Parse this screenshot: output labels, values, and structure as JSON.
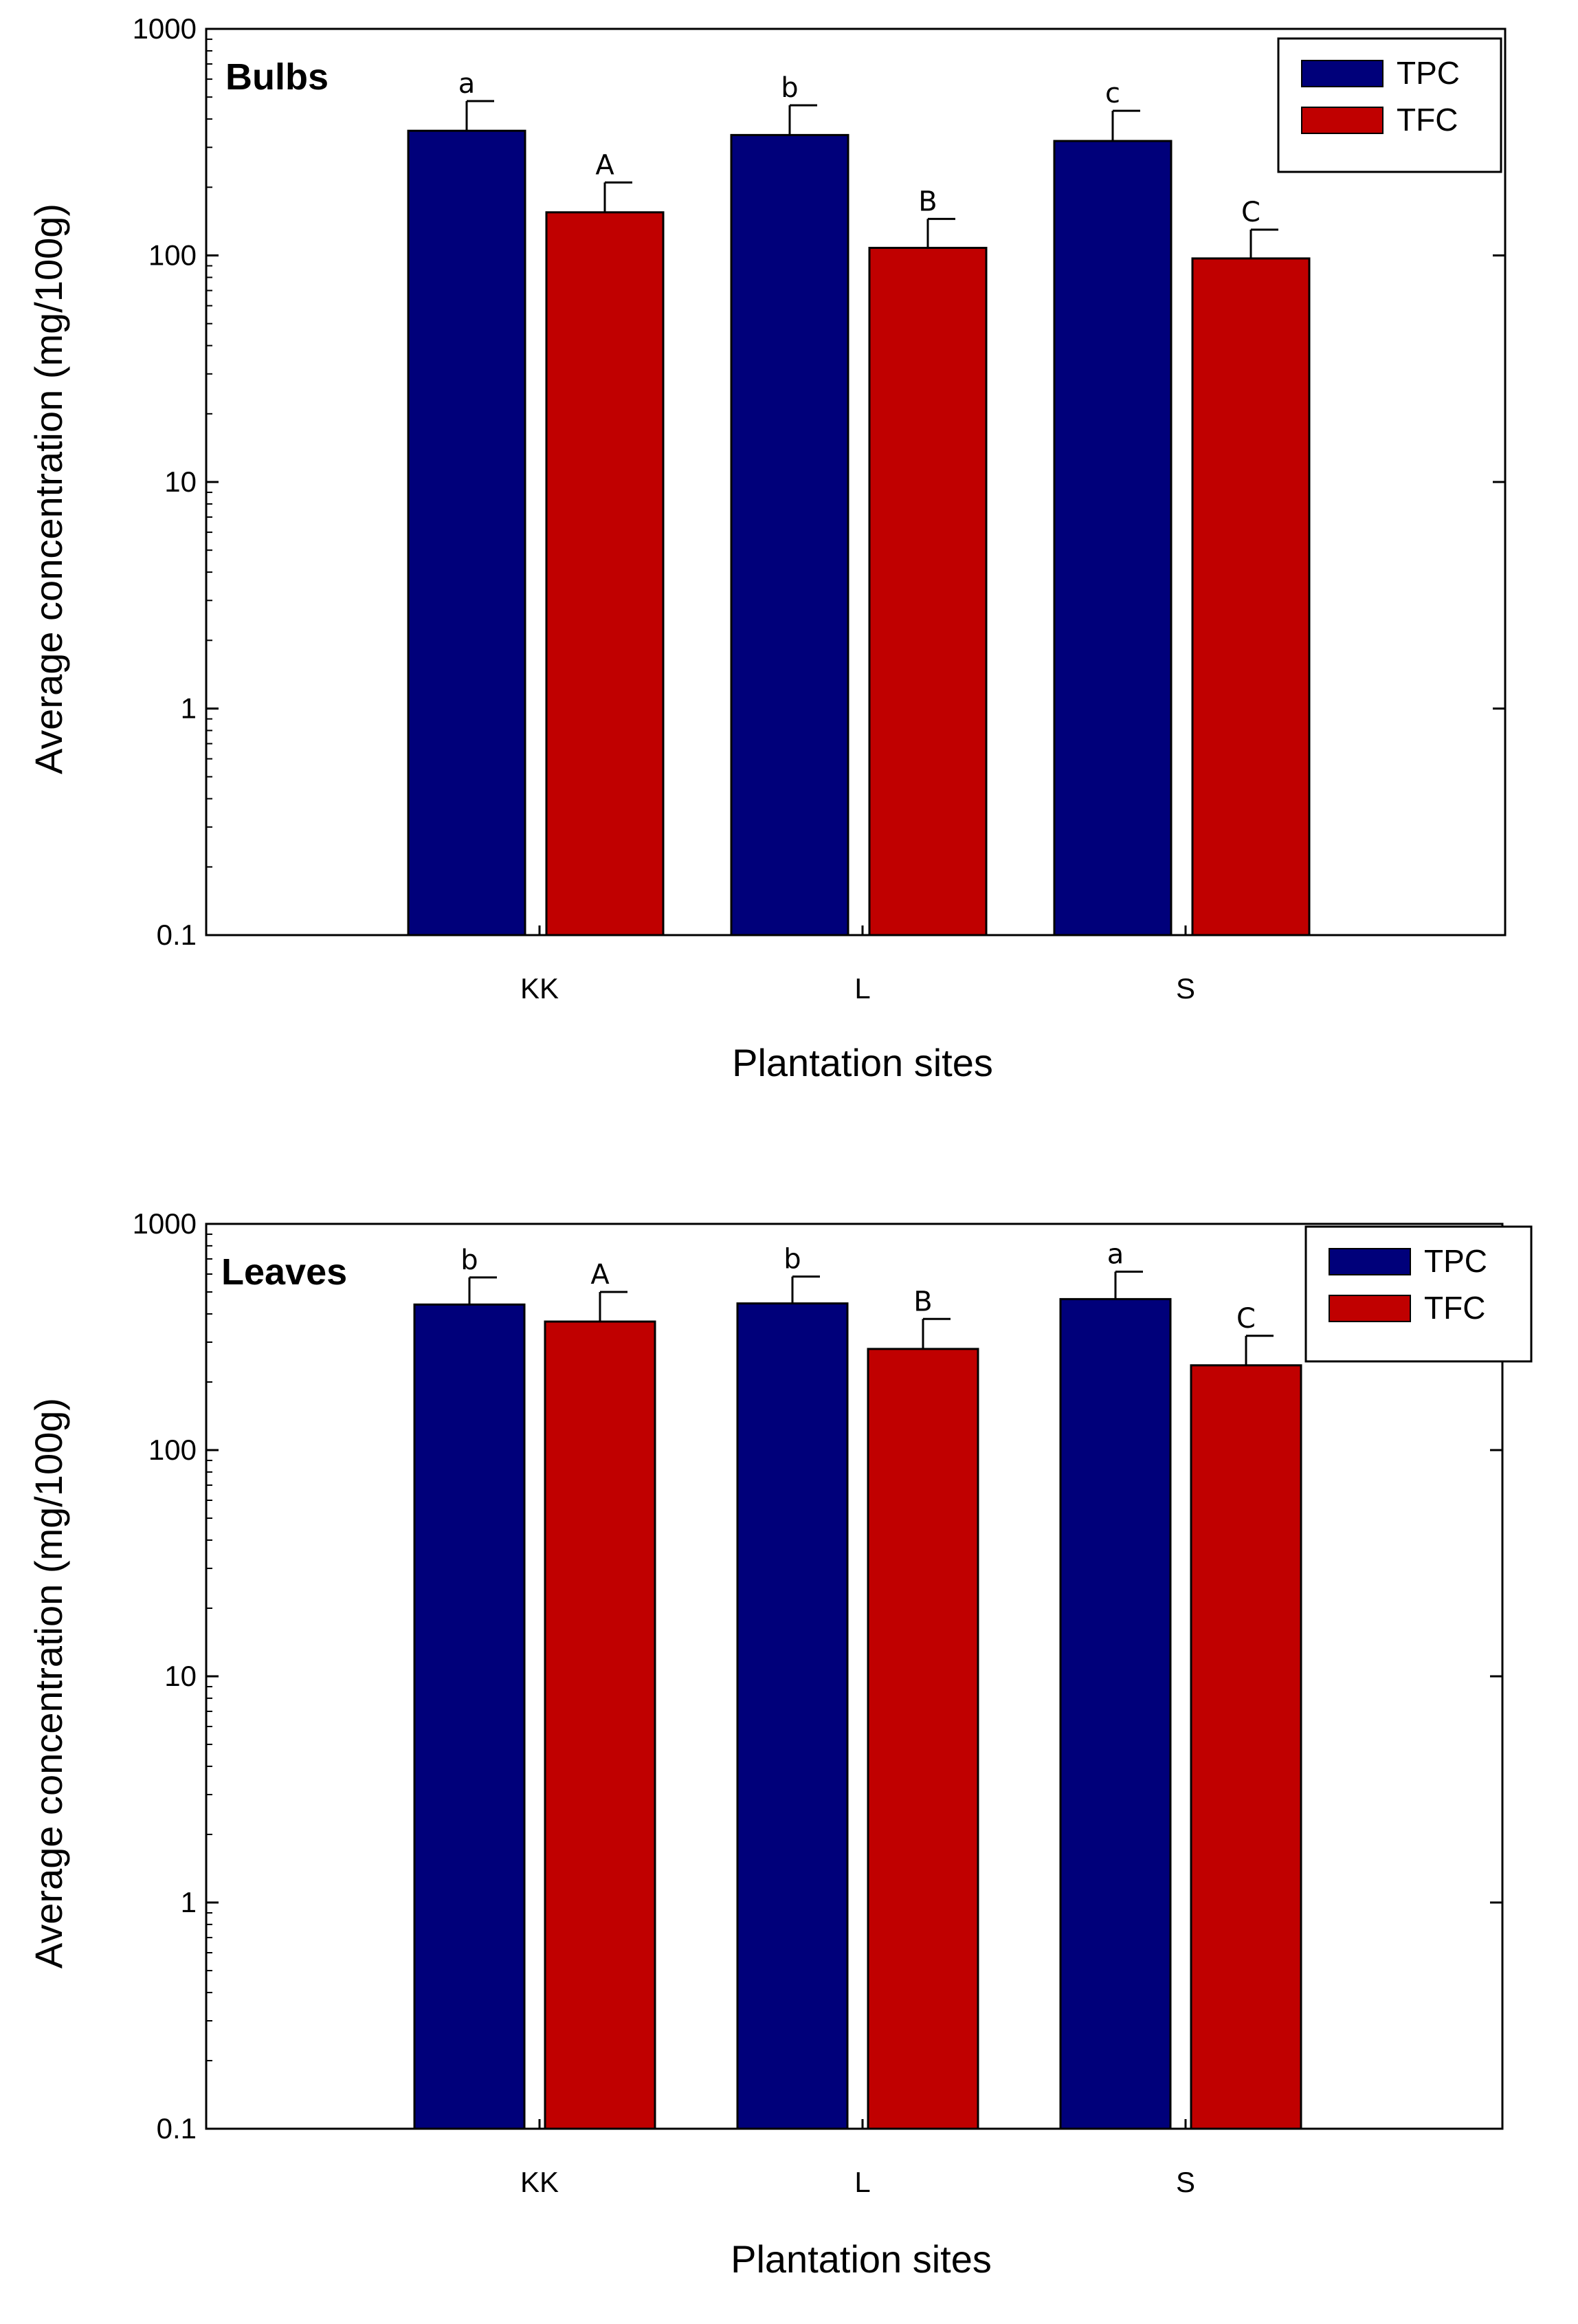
{
  "chart_data": [
    {
      "type": "bar",
      "panel_label": "Bulbs",
      "categories": [
        "KK",
        "L",
        "S"
      ],
      "xlabel": "Plantation sites",
      "ylabel": "Average concentration (mg/100g)",
      "yscale": "log",
      "ylim": [
        0.1,
        1000
      ],
      "yticks": [
        0.1,
        1,
        10,
        100,
        1000
      ],
      "ytick_labels": [
        "0.1",
        "1",
        "10",
        "100",
        "1000"
      ],
      "legend_position": "top-right",
      "series": [
        {
          "name": "TPC",
          "color": "#00007a",
          "values": [
            355,
            340,
            320
          ],
          "errors": [
            125,
            120,
            115
          ],
          "labels": [
            "a",
            "b",
            "c"
          ]
        },
        {
          "name": "TFC",
          "color": "#c00000",
          "values": [
            155,
            108,
            97
          ],
          "errors": [
            55,
            37,
            33
          ],
          "labels": [
            "A",
            "B",
            "C"
          ]
        }
      ]
    },
    {
      "type": "bar",
      "panel_label": "Leaves",
      "categories": [
        "KK",
        "L",
        "S"
      ],
      "xlabel": "Plantation sites",
      "ylabel": "Average concentration (mg/100g)",
      "yscale": "log",
      "ylim": [
        0.1,
        1000
      ],
      "yticks": [
        0.1,
        1,
        10,
        100,
        1000
      ],
      "ytick_labels": [
        "0.1",
        "1",
        "10",
        "100",
        "1000"
      ],
      "legend_position": "top-right",
      "series": [
        {
          "name": "TPC",
          "color": "#00007a",
          "values": [
            440,
            445,
            465
          ],
          "errors": [
            140,
            140,
            150
          ],
          "labels": [
            "b",
            "b",
            "a"
          ]
        },
        {
          "name": "TFC",
          "color": "#c00000",
          "values": [
            370,
            280,
            237
          ],
          "errors": [
            130,
            100,
            83
          ],
          "labels": [
            "A",
            "B",
            "C"
          ]
        }
      ]
    }
  ]
}
